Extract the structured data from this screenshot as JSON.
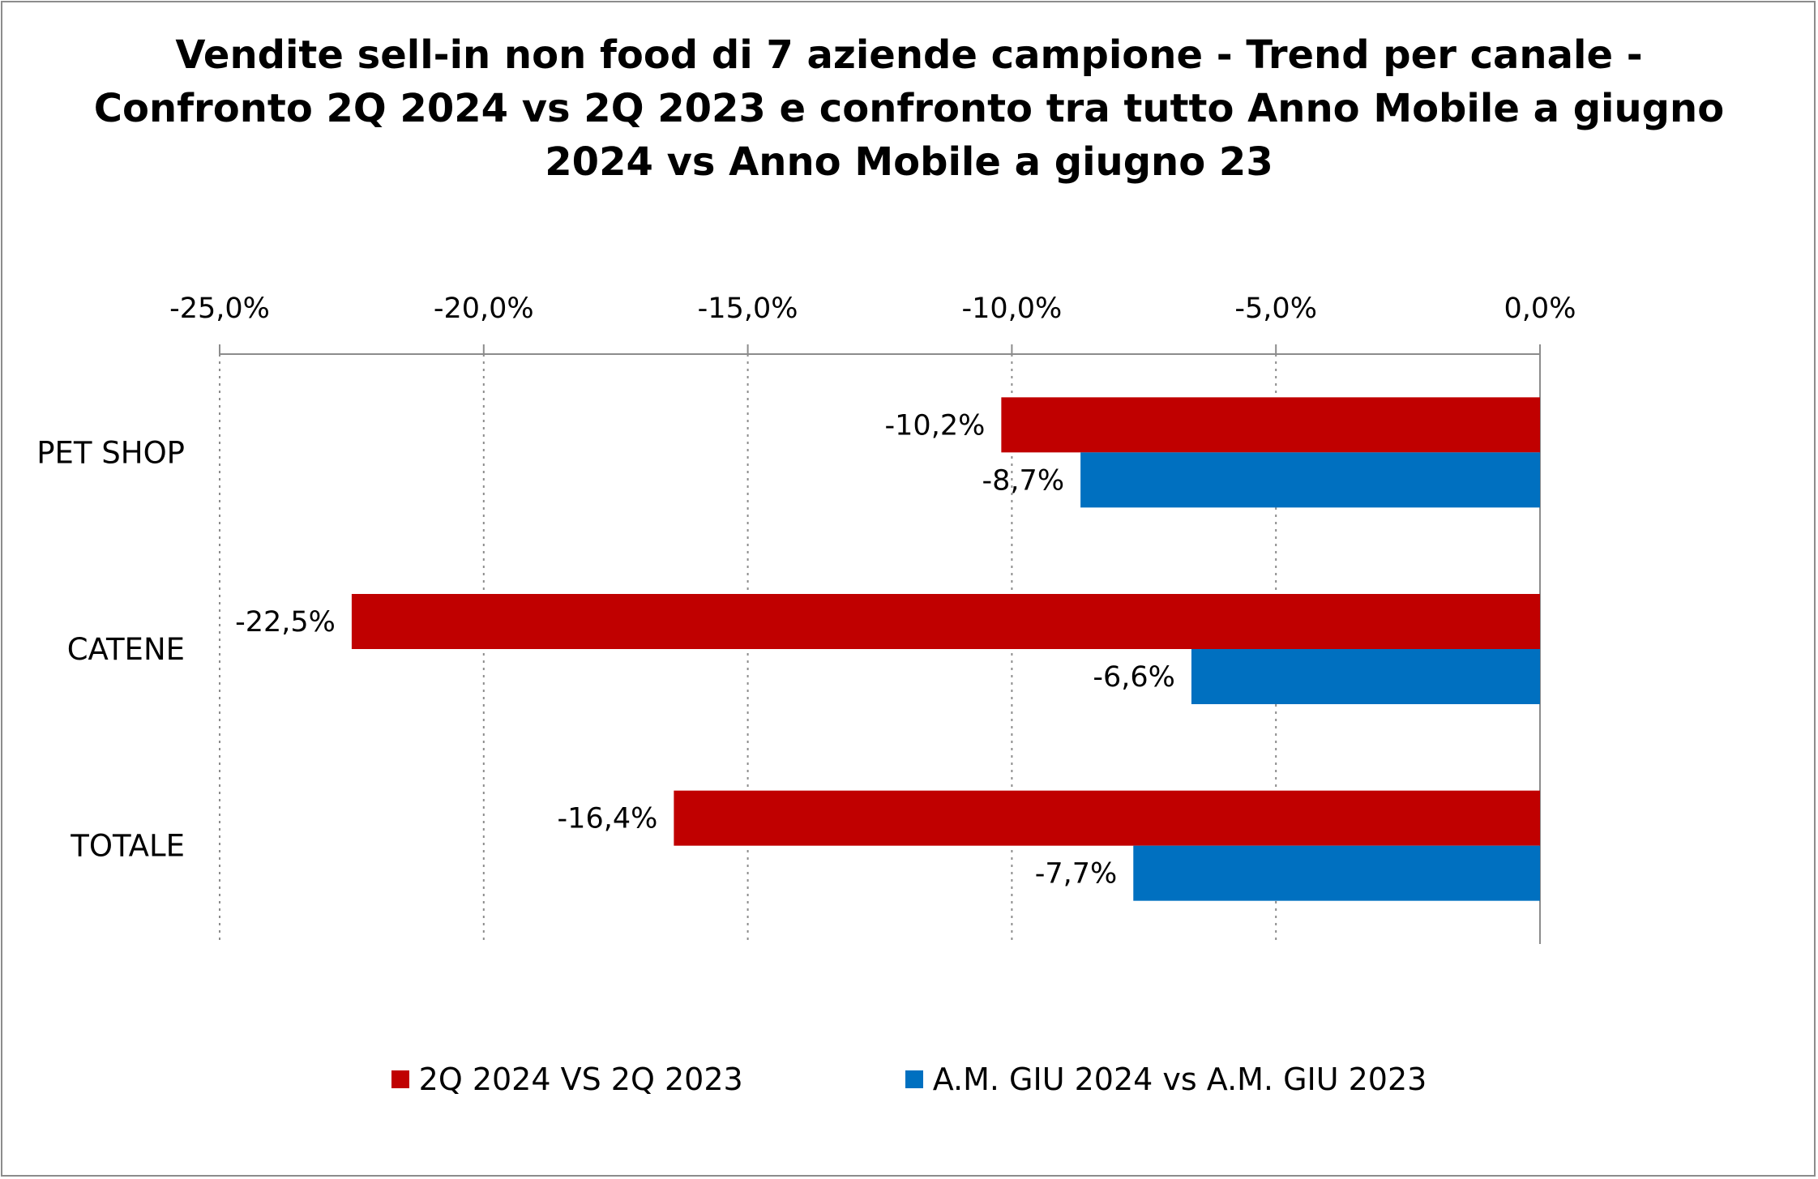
{
  "chart_data": {
    "type": "bar",
    "orientation": "horizontal",
    "title_lines": [
      "Vendite sell-in non food di 7 aziende campione - Trend per canale -",
      "Confronto 2Q 2024 vs 2Q 2023 e confronto tra tutto Anno Mobile a giugno",
      "2024 vs Anno Mobile a giugno 23"
    ],
    "categories": [
      "PET SHOP",
      "CATENE",
      "TOTALE"
    ],
    "series": [
      {
        "name": "2Q 2024 VS 2Q 2023",
        "color": "#c00000",
        "values": [
          -10.2,
          -22.5,
          -16.4
        ],
        "labels": [
          "-10,2%",
          "-22,5%",
          "-16,4%"
        ]
      },
      {
        "name": "A.M. GIU 2024 vs A.M. GIU 2023",
        "color": "#0070c0",
        "values": [
          -8.7,
          -6.6,
          -7.7
        ],
        "labels": [
          "-8,7%",
          "-6,6%",
          "-7,7%"
        ]
      }
    ],
    "xlim": [
      -25,
      0
    ],
    "xticks": [
      -25,
      -20,
      -15,
      -10,
      -5,
      0
    ],
    "xtick_labels": [
      "-25,0%",
      "-20,0%",
      "-15,0%",
      "-10,0%",
      "-5,0%",
      "0,0%"
    ],
    "xaxis_position": "top",
    "grid": true,
    "legend_position": "bottom"
  }
}
